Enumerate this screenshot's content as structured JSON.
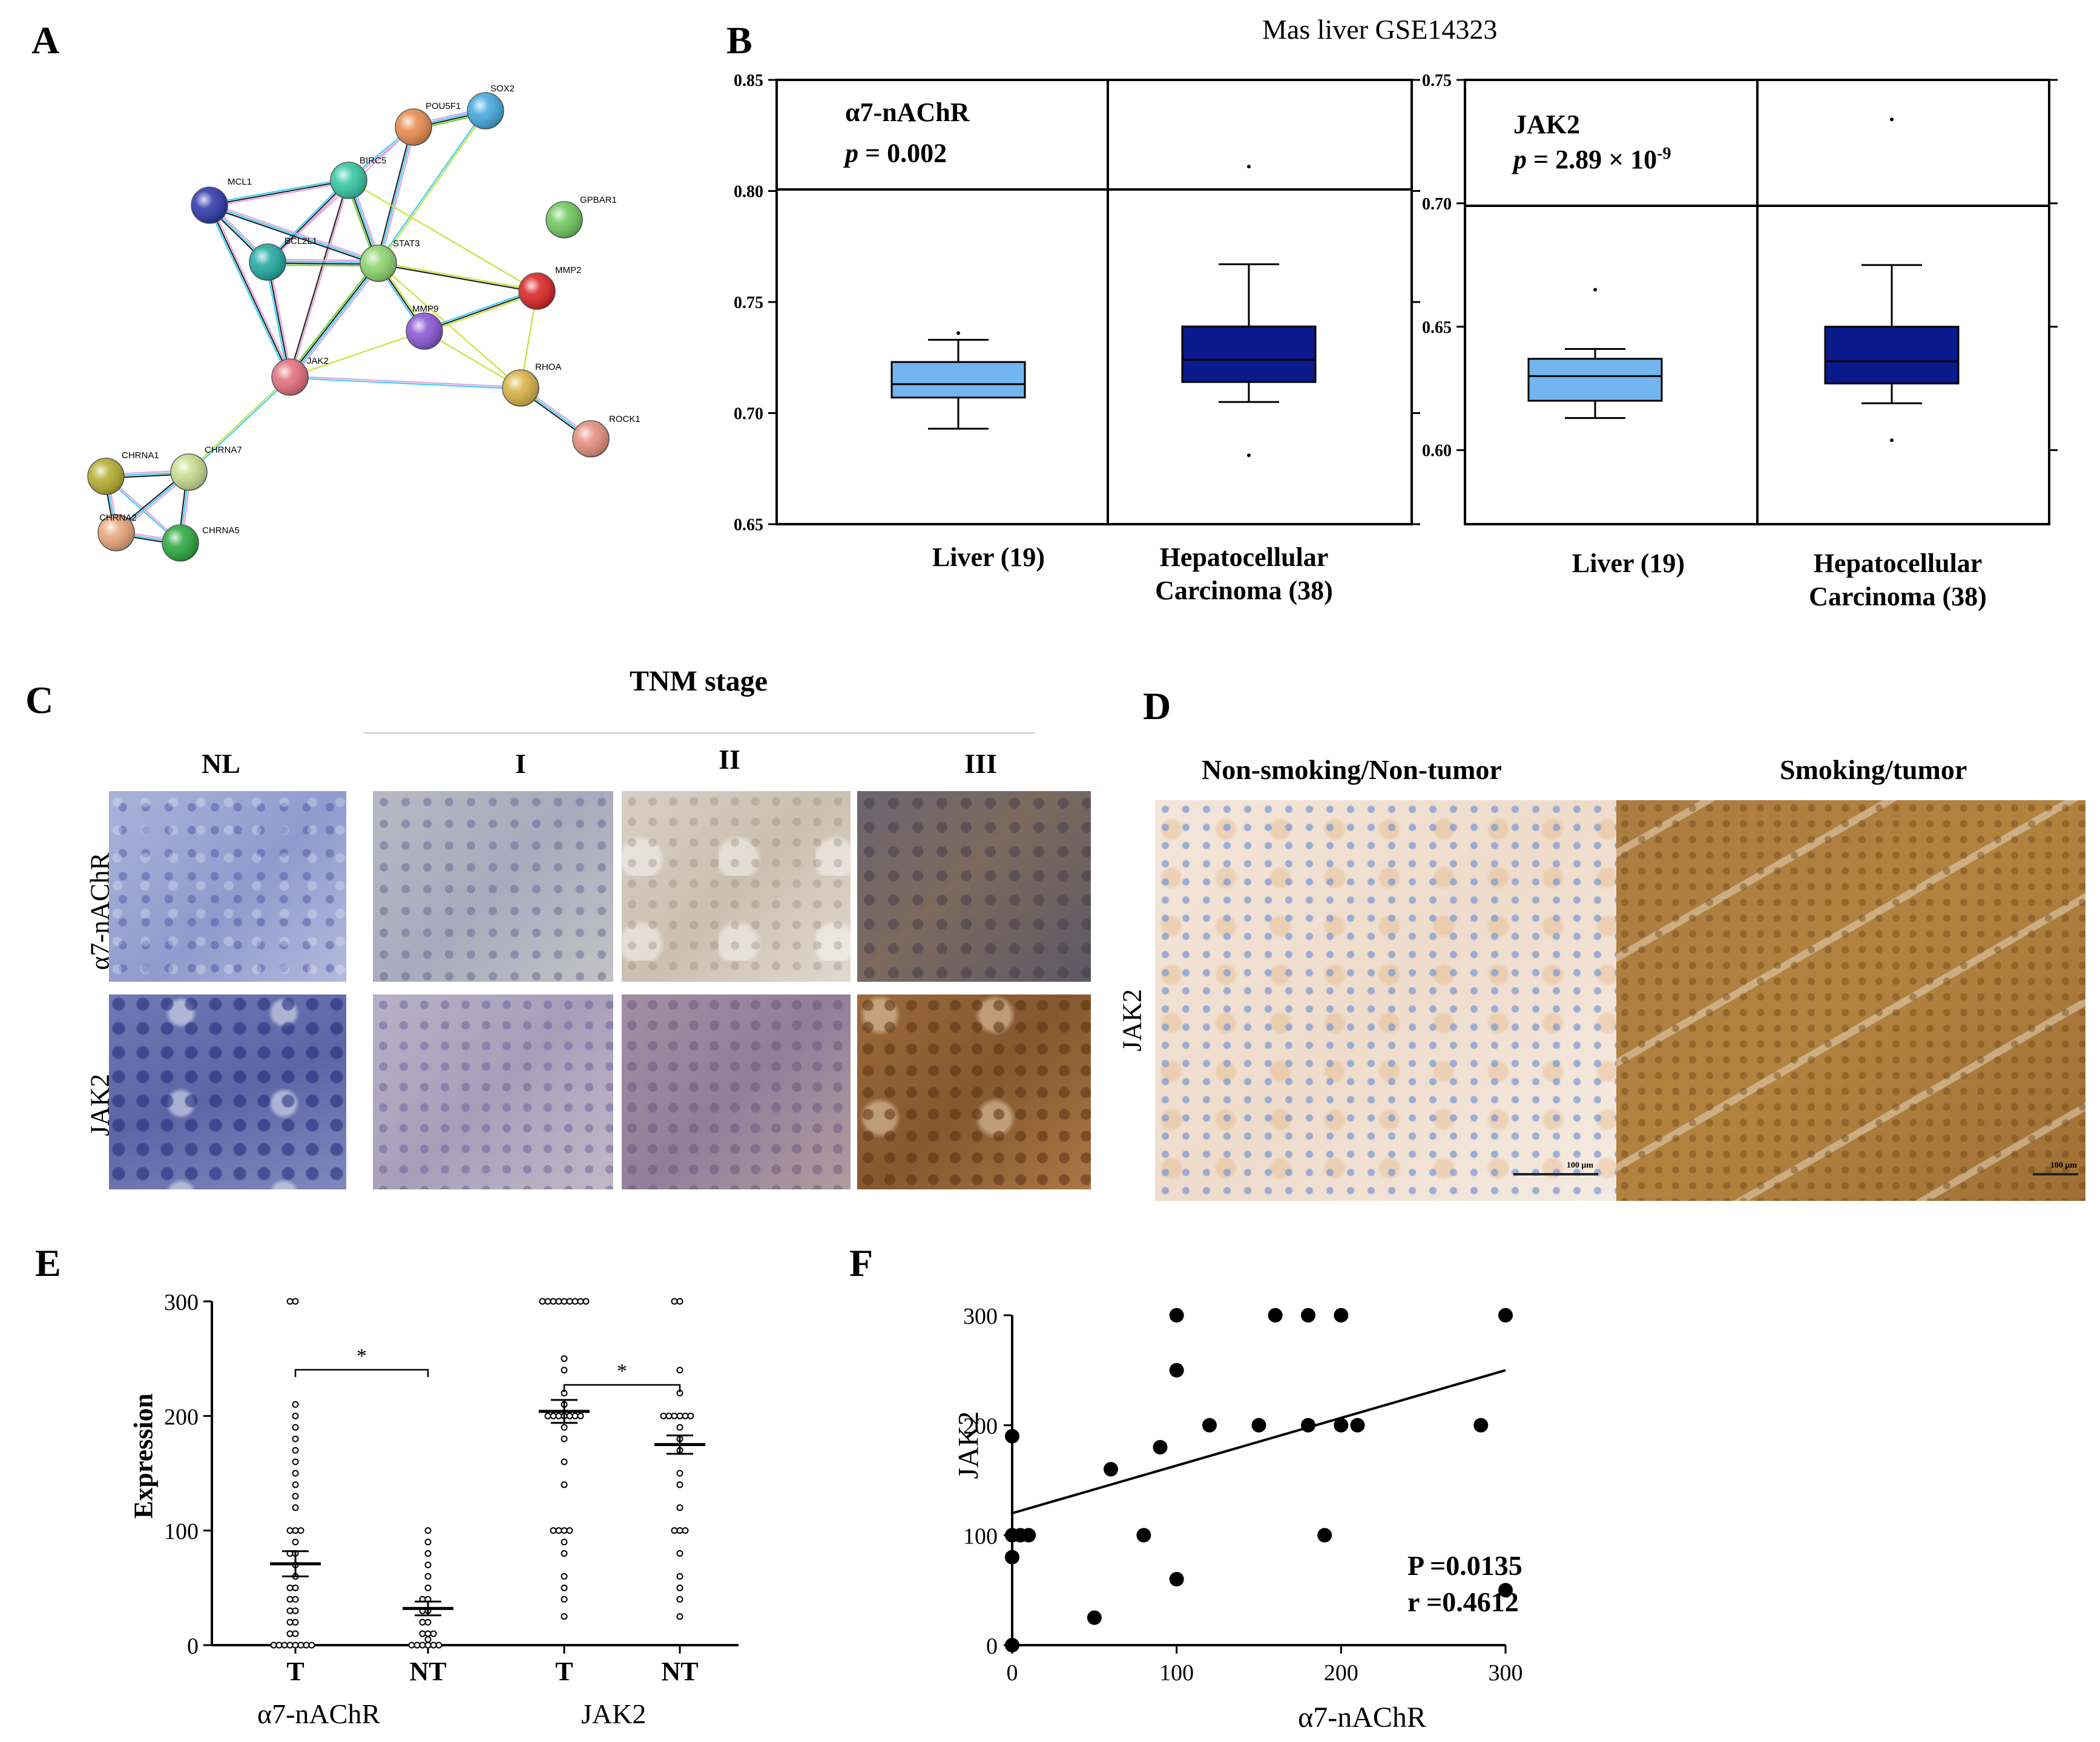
{
  "panels": {
    "A": "A",
    "B": "B",
    "C": "C",
    "D": "D",
    "E": "E",
    "F": "F"
  },
  "panelA": {
    "nodes": [
      {
        "id": "POU5F1",
        "label": "POU5F1",
        "color": "#e8884a"
      },
      {
        "id": "SOX2",
        "label": "SOX2",
        "color": "#3fa7dd"
      },
      {
        "id": "BIRC5",
        "label": "BIRC5",
        "color": "#2fc7a2"
      },
      {
        "id": "MCL1",
        "label": "MCL1",
        "color": "#2733a8"
      },
      {
        "id": "GPBAR1",
        "label": "GPBAR1",
        "color": "#6cc95a"
      },
      {
        "id": "BCL2L1",
        "label": "BCL2L1",
        "color": "#1aa8a0"
      },
      {
        "id": "STAT3",
        "label": "STAT3",
        "color": "#8bd46a"
      },
      {
        "id": "MMP2",
        "label": "MMP2",
        "color": "#d81e1e"
      },
      {
        "id": "MMP9",
        "label": "MMP9",
        "color": "#8752d4"
      },
      {
        "id": "JAK2",
        "label": "JAK2",
        "color": "#e46b7a"
      },
      {
        "id": "RHOA",
        "label": "RHOA",
        "color": "#d8b240"
      },
      {
        "id": "ROCK1",
        "label": "ROCK1",
        "color": "#e68c7a"
      },
      {
        "id": "CHRNA1",
        "label": "CHRNA1",
        "color": "#b3ac2a"
      },
      {
        "id": "CHRNA7",
        "label": "CHRNA7",
        "color": "#c7dd8c"
      },
      {
        "id": "CHRNA2",
        "label": "CHRNA2",
        "color": "#e8a478"
      },
      {
        "id": "CHRNA5",
        "label": "CHRNA5",
        "color": "#27a838"
      }
    ]
  },
  "panelB": {
    "title": "Mas liver GSE14323",
    "plots": [
      {
        "gene": "α7-nAChR",
        "p_prefix": "p",
        "p_value": "= 0.002",
        "p_exponent": "",
        "y_ticks": [
          "0.85",
          "0.80",
          "0.75",
          "0.70",
          "0.65"
        ],
        "groups": [
          {
            "label_line1": "Liver (19)",
            "label_line2": "",
            "color": "#73b6ef",
            "min": 0.693,
            "q1": 0.707,
            "median": 0.713,
            "q3": 0.723,
            "max": 0.733,
            "outliers": [
              0.736
            ]
          },
          {
            "label_line1": "Hepatocellular",
            "label_line2": "Carcinoma (38)",
            "color": "#0a1a8c",
            "min": 0.705,
            "q1": 0.714,
            "median": 0.724,
            "q3": 0.739,
            "max": 0.767,
            "outliers": [
              0.811,
              0.681
            ]
          }
        ]
      },
      {
        "gene": "JAK2",
        "p_prefix": "p",
        "p_value": "= 2.89 × 10",
        "p_exponent": "-9",
        "y_ticks": [
          "0.75",
          "0.70",
          "0.65",
          "0.60"
        ],
        "groups": [
          {
            "label_line1": "Liver (19)",
            "label_line2": "",
            "color": "#73b6ef",
            "min": 0.613,
            "q1": 0.62,
            "median": 0.63,
            "q3": 0.637,
            "max": 0.641,
            "outliers": [
              0.665
            ]
          },
          {
            "label_line1": "Hepatocellular",
            "label_line2": "Carcinoma (38)",
            "color": "#0a1a8c",
            "min": 0.619,
            "q1": 0.627,
            "median": 0.636,
            "q3": 0.65,
            "max": 0.675,
            "outliers": [
              0.734,
              0.604
            ]
          }
        ]
      }
    ]
  },
  "panelC": {
    "header": "TNM stage",
    "columns": [
      "NL",
      "I",
      "II",
      "III"
    ],
    "rows": [
      "α7-nAChR",
      "JAK2"
    ]
  },
  "panelD": {
    "left_title": "Non-smoking/Non-tumor",
    "right_title": "Smoking/tumor",
    "row_label": "JAK2",
    "scale_left": "100 μm",
    "scale_right": "100 μm"
  },
  "panelE": {
    "ylabel": "Expression",
    "y_ticks": [
      "300",
      "200",
      "100",
      "0"
    ],
    "sig_marks": [
      "*",
      "*"
    ],
    "categories": [
      "T",
      "NT",
      "T",
      "NT"
    ],
    "gene_labels": [
      "α7-nAChR",
      "JAK2"
    ],
    "chart_data": {
      "type": "scatter",
      "ylim": [
        0,
        300
      ],
      "series": [
        {
          "name": "α7-nAChR T",
          "mean": 71,
          "sem": 11,
          "values": [
            300,
            300,
            210,
            200,
            190,
            180,
            170,
            160,
            150,
            140,
            130,
            120,
            100,
            100,
            100,
            90,
            80,
            80,
            70,
            60,
            50,
            50,
            40,
            40,
            30,
            30,
            20,
            20,
            10,
            10,
            0,
            0,
            0,
            0,
            0,
            0,
            0,
            0
          ]
        },
        {
          "name": "α7-nAChR NT",
          "mean": 32,
          "sem": 6,
          "values": [
            100,
            90,
            80,
            70,
            60,
            50,
            40,
            40,
            30,
            30,
            20,
            20,
            10,
            10,
            10,
            5,
            0,
            0,
            0,
            0,
            0,
            0
          ]
        },
        {
          "name": "JAK2 T",
          "mean": 204,
          "sem": 10,
          "values": [
            300,
            300,
            300,
            300,
            300,
            300,
            300,
            300,
            300,
            250,
            240,
            220,
            210,
            200,
            200,
            200,
            200,
            200,
            200,
            200,
            190,
            180,
            160,
            140,
            100,
            100,
            100,
            100,
            90,
            80,
            60,
            50,
            40,
            25
          ]
        },
        {
          "name": "JAK2 NT",
          "mean": 175,
          "sem": 8,
          "values": [
            300,
            300,
            240,
            220,
            200,
            200,
            200,
            200,
            200,
            200,
            190,
            180,
            170,
            150,
            140,
            120,
            100,
            100,
            100,
            80,
            60,
            50,
            40,
            25
          ]
        }
      ]
    }
  },
  "panelF": {
    "xlabel": "α7-nAChR",
    "ylabel": "JAK2",
    "x_ticks": [
      "0",
      "100",
      "200",
      "300"
    ],
    "y_ticks": [
      "300",
      "200",
      "100",
      "0"
    ],
    "stat_p": "P =0.0135",
    "stat_r": "r  =0.4612",
    "chart_data": {
      "type": "scatter",
      "xlim": [
        0,
        300
      ],
      "ylim": [
        0,
        300
      ],
      "points": [
        [
          0,
          190
        ],
        [
          0,
          100
        ],
        [
          0,
          80
        ],
        [
          0,
          0
        ],
        [
          5,
          100
        ],
        [
          10,
          100
        ],
        [
          50,
          25
        ],
        [
          60,
          160
        ],
        [
          80,
          100
        ],
        [
          90,
          180
        ],
        [
          100,
          300
        ],
        [
          100,
          250
        ],
        [
          100,
          60
        ],
        [
          120,
          200
        ],
        [
          150,
          200
        ],
        [
          160,
          300
        ],
        [
          180,
          300
        ],
        [
          180,
          200
        ],
        [
          190,
          100
        ],
        [
          200,
          300
        ],
        [
          200,
          200
        ],
        [
          210,
          200
        ],
        [
          285,
          200
        ],
        [
          300,
          300
        ],
        [
          300,
          50
        ]
      ],
      "regression": {
        "x": [
          0,
          300
        ],
        "y": [
          120,
          250
        ]
      }
    }
  }
}
